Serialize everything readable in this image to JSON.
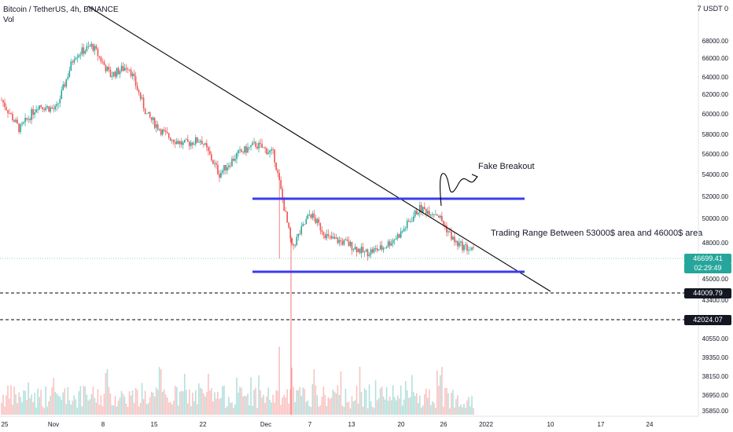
{
  "header": {
    "title": "Bitcoin / TetherUS, 4h, BINANCE",
    "volume_label": "Vol"
  },
  "unit_label": "7 USDT 0",
  "price_axis": {
    "ticks": [
      "68000.00",
      "66000.00",
      "64000.00",
      "62000.00",
      "60000.00",
      "58000.00",
      "56000.00",
      "54000.00",
      "52000.00",
      "50000.00",
      "48000.00",
      "45000.00",
      "43400.00",
      "40550.00",
      "39350.00",
      "38150.00",
      "36950.00",
      "35850.00"
    ]
  },
  "price_badges": {
    "last_price": "46699.41",
    "countdown": "02:29:49",
    "level_1": "44009.79",
    "level_2": "42024.07"
  },
  "time_axis": {
    "labels": [
      "25",
      "Nov",
      "8",
      "15",
      "22",
      "Dec",
      "7",
      "13",
      "20",
      "26",
      "2022",
      "10",
      "17",
      "24"
    ]
  },
  "annotations": {
    "fake_breakout": "Fake Breakout",
    "trading_range": "Trading Range Between 53000$ area and 46000$ area"
  },
  "colors": {
    "up": "#26a69a",
    "down": "#ef5350",
    "range_lines": "#3b3bf0",
    "trendline": "#000000",
    "last_price_badge": "#26a69a",
    "level_badge": "#131722"
  },
  "chart_data": {
    "type": "candlestick",
    "symbol": "Bitcoin / TetherUS",
    "interval": "4h",
    "exchange": "BINANCE",
    "price_range": [
      35850,
      68000
    ],
    "last_price": 46699.41,
    "support_resistance": [
      {
        "name": "Trading Range top",
        "value": 52000
      },
      {
        "name": "Trading Range bottom",
        "value": 45900
      },
      {
        "name": "level",
        "value": 44009.79
      },
      {
        "name": "level",
        "value": 42024.07
      }
    ],
    "close_path": [
      [
        "Oct 25",
        62000
      ],
      [
        "Oct 28",
        59000
      ],
      [
        "Nov 1",
        61500
      ],
      [
        "Nov 5",
        61000
      ],
      [
        "Nov 8",
        66500
      ],
      [
        "Nov 10",
        67500
      ],
      [
        "Nov 12",
        64500
      ],
      [
        "Nov 15",
        65500
      ],
      [
        "Nov 17",
        60500
      ],
      [
        "Nov 19",
        58500
      ],
      [
        "Nov 22",
        57500
      ],
      [
        "Nov 24",
        58000
      ],
      [
        "Nov 26",
        54500
      ],
      [
        "Nov 28",
        56500
      ],
      [
        "Dec 1",
        57500
      ],
      [
        "Dec 3",
        56500
      ],
      [
        "Dec 4",
        47000
      ],
      [
        "Dec 7",
        50500
      ],
      [
        "Dec 10",
        48000
      ],
      [
        "Dec 13",
        47500
      ],
      [
        "Dec 17",
        46500
      ],
      [
        "Dec 20",
        47000
      ],
      [
        "Dec 23",
        48500
      ],
      [
        "Dec 25",
        51000
      ],
      [
        "Dec 27",
        50500
      ],
      [
        "Dec 29",
        47500
      ],
      [
        "Dec 31",
        46699
      ]
    ]
  }
}
